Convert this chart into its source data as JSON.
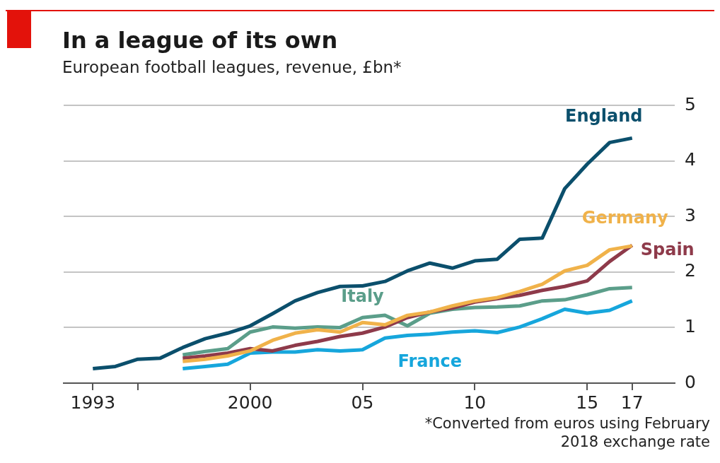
{
  "chart_data": {
    "type": "line",
    "title": "In a league of its own",
    "subtitle": "European football leagues, revenue, £bn*",
    "x": [
      1993,
      1994,
      1995,
      1996,
      1997,
      1998,
      1999,
      2000,
      2001,
      2002,
      2003,
      2004,
      2005,
      2006,
      2007,
      2008,
      2009,
      2010,
      2011,
      2012,
      2013,
      2014,
      2015,
      2016,
      2017
    ],
    "series": [
      {
        "name": "England",
        "color": "#0b4f6c",
        "values": [
          0.26,
          0.3,
          0.43,
          0.45,
          0.64,
          0.8,
          0.9,
          1.03,
          1.25,
          1.48,
          1.63,
          1.74,
          1.75,
          1.83,
          2.02,
          2.16,
          2.07,
          2.2,
          2.23,
          2.59,
          2.61,
          3.5,
          3.94,
          4.33,
          4.41
        ]
      },
      {
        "name": "Germany",
        "color": "#f0b24a",
        "values": [
          null,
          null,
          null,
          null,
          0.39,
          0.43,
          0.49,
          0.58,
          0.77,
          0.9,
          0.96,
          0.92,
          1.09,
          1.05,
          1.22,
          1.28,
          1.39,
          1.48,
          1.54,
          1.65,
          1.78,
          2.02,
          2.12,
          2.4,
          2.47
        ]
      },
      {
        "name": "Spain",
        "color": "#8e3a4a",
        "values": [
          null,
          null,
          null,
          null,
          0.45,
          0.49,
          0.54,
          0.62,
          0.58,
          0.68,
          0.75,
          0.84,
          0.9,
          1.01,
          1.18,
          1.28,
          1.35,
          1.46,
          1.52,
          1.58,
          1.67,
          1.74,
          1.84,
          2.19,
          2.48
        ]
      },
      {
        "name": "Italy",
        "color": "#5b9e8a",
        "values": [
          null,
          null,
          null,
          null,
          0.51,
          0.57,
          0.62,
          0.92,
          1.01,
          0.99,
          1.01,
          1.0,
          1.18,
          1.22,
          1.03,
          1.26,
          1.33,
          1.36,
          1.37,
          1.39,
          1.48,
          1.5,
          1.59,
          1.7,
          1.72
        ]
      },
      {
        "name": "France",
        "color": "#16a6dc",
        "values": [
          null,
          null,
          null,
          null,
          0.26,
          0.3,
          0.34,
          0.54,
          0.56,
          0.56,
          0.6,
          0.58,
          0.6,
          0.81,
          0.86,
          0.88,
          0.92,
          0.94,
          0.91,
          1.01,
          1.16,
          1.33,
          1.26,
          1.31,
          1.48
        ]
      }
    ],
    "xlim": [
      1991.7,
      2018.9
    ],
    "xticks": [
      1993,
      {
        "value": 1995,
        "label": null
      },
      2000,
      {
        "value": 2005,
        "label": "05"
      },
      {
        "value": 2010,
        "label": "10"
      },
      {
        "value": 2015,
        "label": "15"
      },
      {
        "value": 2017,
        "label": "17"
      }
    ],
    "ylim": [
      0,
      5
    ],
    "yticks": [
      0,
      1,
      2,
      3,
      4,
      5
    ],
    "grid": "y",
    "legend": false,
    "marker": "none",
    "line_style": "solid",
    "annotations": [
      "*Converted from euros using February 2018 exchange rate"
    ]
  }
}
